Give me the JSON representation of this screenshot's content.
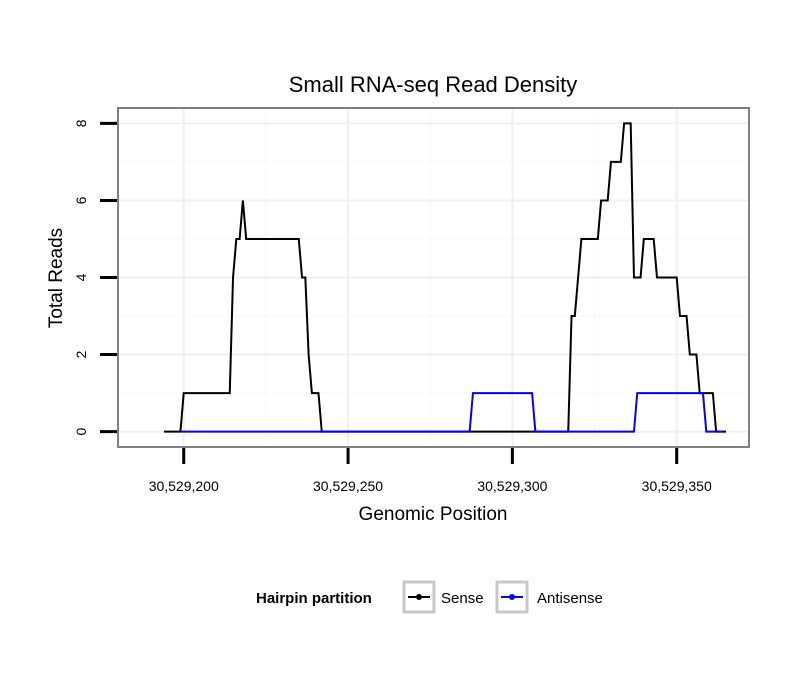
{
  "chart_data": {
    "type": "line",
    "title": "Small RNA-seq Read Density",
    "xlabel": "Genomic Position",
    "ylabel": "Total Reads",
    "xlim": [
      30529180,
      30529372
    ],
    "ylim": [
      -0.4,
      8.4
    ],
    "xticks": [
      30529200,
      30529250,
      30529300,
      30529350
    ],
    "xtick_labels": [
      "30,529,200",
      "30,529,250",
      "30,529,300",
      "30,529,350"
    ],
    "yticks": [
      0,
      2,
      4,
      6,
      8
    ],
    "ytick_labels": [
      "0",
      "2",
      "4",
      "6",
      "8"
    ],
    "grid": true,
    "legend": {
      "title": "Hairpin partition",
      "position": "bottom",
      "entries": [
        "Sense",
        "Antisense"
      ]
    },
    "series": [
      {
        "name": "Sense",
        "color": "#000000",
        "points": [
          [
            30529194,
            0
          ],
          [
            30529199,
            0
          ],
          [
            30529200,
            1
          ],
          [
            30529214,
            1
          ],
          [
            30529215,
            4
          ],
          [
            30529216,
            5
          ],
          [
            30529217,
            5
          ],
          [
            30529218,
            6
          ],
          [
            30529219,
            5
          ],
          [
            30529235,
            5
          ],
          [
            30529236,
            4
          ],
          [
            30529237,
            4
          ],
          [
            30529238,
            2
          ],
          [
            30529239,
            1
          ],
          [
            30529241,
            1
          ],
          [
            30529242,
            0
          ],
          [
            30529317,
            0
          ],
          [
            30529318,
            3
          ],
          [
            30529319,
            3
          ],
          [
            30529321,
            5
          ],
          [
            30529326,
            5
          ],
          [
            30529327,
            6
          ],
          [
            30529329,
            6
          ],
          [
            30529330,
            7
          ],
          [
            30529333,
            7
          ],
          [
            30529334,
            8
          ],
          [
            30529336,
            8
          ],
          [
            30529337,
            4
          ],
          [
            30529339,
            4
          ],
          [
            30529340,
            5
          ],
          [
            30529343,
            5
          ],
          [
            30529344,
            4
          ],
          [
            30529350,
            4
          ],
          [
            30529351,
            3
          ],
          [
            30529353,
            3
          ],
          [
            30529354,
            2
          ],
          [
            30529356,
            2
          ],
          [
            30529357,
            1
          ],
          [
            30529361,
            1
          ],
          [
            30529362,
            0
          ],
          [
            30529365,
            0
          ]
        ]
      },
      {
        "name": "Antisense",
        "color": "#0000ff",
        "points": [
          [
            30529199,
            0
          ],
          [
            30529287,
            0
          ],
          [
            30529288,
            1
          ],
          [
            30529306,
            1
          ],
          [
            30529307,
            0
          ],
          [
            30529337,
            0
          ],
          [
            30529338,
            1
          ],
          [
            30529358,
            1
          ],
          [
            30529359,
            0
          ],
          [
            30529364,
            0
          ]
        ]
      }
    ]
  }
}
